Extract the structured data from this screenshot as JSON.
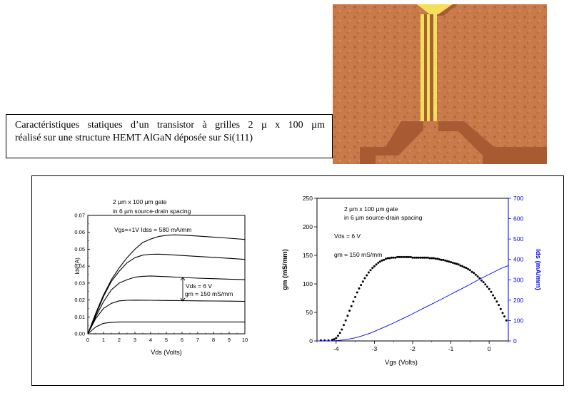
{
  "caption": {
    "line1": "Caractéristiques statiques d’un transistor à grilles 2 µ x 100 µm",
    "line2": "réalisé sur une structure HEMT AlGaN déposée sur Si(111)"
  },
  "colors": {
    "micrograph_bg": "#c97a4a",
    "gold": "#f4df5a",
    "blue_curve": "#0000ff",
    "dots": "#000000"
  },
  "chart_data": [
    {
      "type": "line",
      "title": "",
      "xlabel": "Vds (Volts)",
      "ylabel": "Ids (A)",
      "xlim": [
        0,
        10
      ],
      "ylim": [
        0,
        0.07
      ],
      "x_ticks": [
        "0",
        "1",
        "2",
        "3",
        "4",
        "5",
        "6",
        "7",
        "8",
        "9",
        "10"
      ],
      "y_ticks": [
        "0.00",
        "0.01",
        "0.02",
        "0.03",
        "0.04",
        "0.05",
        "0.06",
        "0.07"
      ],
      "annotations": {
        "gate_line1": "2 µm x 100 µm gate",
        "gate_line2": "in 6 µm source-drain spacing",
        "bias": "Vgs=+1V   Idss = 580 mA/mm",
        "vds": "Vds = 6 V",
        "gm": "gm = 150 mS/mm"
      },
      "series": [
        {
          "x": [
            0,
            0.5,
            1,
            1.5,
            2,
            2.5,
            3,
            3.5,
            4,
            4.5,
            5,
            5.5,
            6,
            7,
            8,
            9,
            10
          ],
          "values": [
            0,
            0.012,
            0.023,
            0.032,
            0.039,
            0.045,
            0.05,
            0.054,
            0.056,
            0.0575,
            0.0582,
            0.0585,
            0.0583,
            0.0578,
            0.0572,
            0.0565,
            0.0558
          ]
        },
        {
          "x": [
            0,
            0.5,
            1,
            1.5,
            2,
            2.5,
            3,
            3.5,
            4,
            4.5,
            5,
            6,
            7,
            8,
            9,
            10
          ],
          "values": [
            0,
            0.011,
            0.022,
            0.031,
            0.037,
            0.042,
            0.045,
            0.0465,
            0.047,
            0.0471,
            0.0469,
            0.0463,
            0.0457,
            0.0452,
            0.0446,
            0.044
          ]
        },
        {
          "x": [
            0,
            0.5,
            1,
            1.5,
            2,
            2.5,
            3,
            3.5,
            4,
            4.5,
            5,
            6,
            7,
            8,
            9,
            10
          ],
          "values": [
            0,
            0.01,
            0.019,
            0.026,
            0.03,
            0.032,
            0.0335,
            0.034,
            0.0342,
            0.034,
            0.0338,
            0.0333,
            0.0329,
            0.0326,
            0.0323,
            0.032
          ]
        },
        {
          "x": [
            0,
            0.5,
            1,
            1.5,
            2,
            2.5,
            3,
            4,
            5,
            6,
            7,
            8,
            9,
            10
          ],
          "values": [
            0,
            0.009,
            0.015,
            0.018,
            0.0195,
            0.0198,
            0.0199,
            0.0198,
            0.0197,
            0.0196,
            0.0195,
            0.0194,
            0.0193,
            0.0192
          ]
        },
        {
          "x": [
            0,
            0.5,
            1,
            1.5,
            2,
            3,
            4,
            5,
            6,
            7,
            8,
            9,
            10
          ],
          "values": [
            0,
            0.004,
            0.0062,
            0.0068,
            0.007,
            0.007,
            0.007,
            0.007,
            0.007,
            0.007,
            0.007,
            0.007,
            0.007
          ]
        }
      ]
    },
    {
      "type": "scatter",
      "title": "",
      "xlabel": "Vgs (Volts)",
      "ylabel": "gm (mS/mm)",
      "y2label": "Ids (mA/mm)",
      "xlim": [
        -4.5,
        0.5
      ],
      "ylim": [
        0,
        250
      ],
      "y2lim": [
        0,
        700
      ],
      "x_ticks": [
        -4,
        -3,
        -2,
        -1,
        0
      ],
      "y_ticks": [
        0,
        50,
        100,
        150,
        200,
        250
      ],
      "y2_ticks": [
        0,
        100,
        200,
        300,
        400,
        500,
        600,
        700
      ],
      "annotations": {
        "gate_line1": "2 µm x 100 µm gate",
        "gate_line2": "in 6 µm source-drain spacing",
        "vds": "Vds = 6 V",
        "gm": "gm = 150 mS/mm"
      },
      "series": [
        {
          "type": "scatter",
          "axis": "left",
          "x": [
            -4.4,
            -4.3,
            -4.2,
            -4.1,
            -4.05,
            -4.0,
            -3.95,
            -3.9,
            -3.85,
            -3.8,
            -3.75,
            -3.7,
            -3.65,
            -3.6,
            -3.55,
            -3.5,
            -3.45,
            -3.4,
            -3.35,
            -3.3,
            -3.25,
            -3.2,
            -3.15,
            -3.1,
            -3.05,
            -3.0,
            -2.95,
            -2.9,
            -2.85,
            -2.8,
            -2.75,
            -2.7,
            -2.65,
            -2.6,
            -2.55,
            -2.5,
            -2.45,
            -2.4,
            -2.35,
            -2.3,
            -2.25,
            -2.2,
            -2.15,
            -2.1,
            -2.05,
            -2.0,
            -1.95,
            -1.9,
            -1.85,
            -1.8,
            -1.75,
            -1.7,
            -1.65,
            -1.6,
            -1.55,
            -1.5,
            -1.45,
            -1.4,
            -1.35,
            -1.3,
            -1.25,
            -1.2,
            -1.15,
            -1.1,
            -1.05,
            -1.0,
            -0.95,
            -0.9,
            -0.85,
            -0.8,
            -0.75,
            -0.7,
            -0.65,
            -0.6,
            -0.55,
            -0.5,
            -0.45,
            -0.4,
            -0.35,
            -0.3,
            -0.25,
            -0.2,
            -0.15,
            -0.1,
            -0.05,
            0.0,
            0.05,
            0.1,
            0.15,
            0.2,
            0.25,
            0.3,
            0.35,
            0.4,
            0.45
          ],
          "values": [
            1,
            1,
            1,
            2,
            3,
            5,
            9,
            14,
            20,
            28,
            36,
            44,
            53,
            61,
            69,
            77,
            85,
            92,
            98,
            104,
            110,
            115,
            120,
            124,
            128,
            131,
            134,
            137,
            139,
            141,
            142,
            144,
            145,
            145,
            146,
            146,
            146,
            147,
            147,
            147,
            147,
            147,
            147,
            147,
            147,
            146,
            146,
            146,
            146,
            146,
            146,
            146,
            146,
            146,
            145,
            145,
            145,
            144,
            144,
            143,
            142,
            142,
            141,
            140,
            139,
            138,
            137,
            136,
            135,
            134,
            132,
            131,
            129,
            128,
            126,
            124,
            121,
            119,
            116,
            113,
            110,
            106,
            103,
            99,
            95,
            91,
            86,
            80,
            75,
            69,
            63,
            56,
            49,
            43,
            36
          ]
        },
        {
          "type": "line",
          "axis": "right",
          "x": [
            -4.5,
            -4.3,
            -4.1,
            -3.9,
            -3.7,
            -3.5,
            -3.3,
            -3.1,
            -2.9,
            -2.7,
            -2.5,
            -2.3,
            -2.1,
            -1.9,
            -1.7,
            -1.5,
            -1.3,
            -1.1,
            -0.9,
            -0.7,
            -0.5,
            -0.3,
            -0.1,
            0.1,
            0.3,
            0.5
          ],
          "values": [
            0,
            0,
            0,
            3,
            8,
            15,
            26,
            39,
            55,
            71,
            88,
            106,
            124,
            143,
            162,
            181,
            200,
            219,
            239,
            258,
            278,
            298,
            317,
            336,
            355,
            370
          ]
        }
      ]
    }
  ]
}
